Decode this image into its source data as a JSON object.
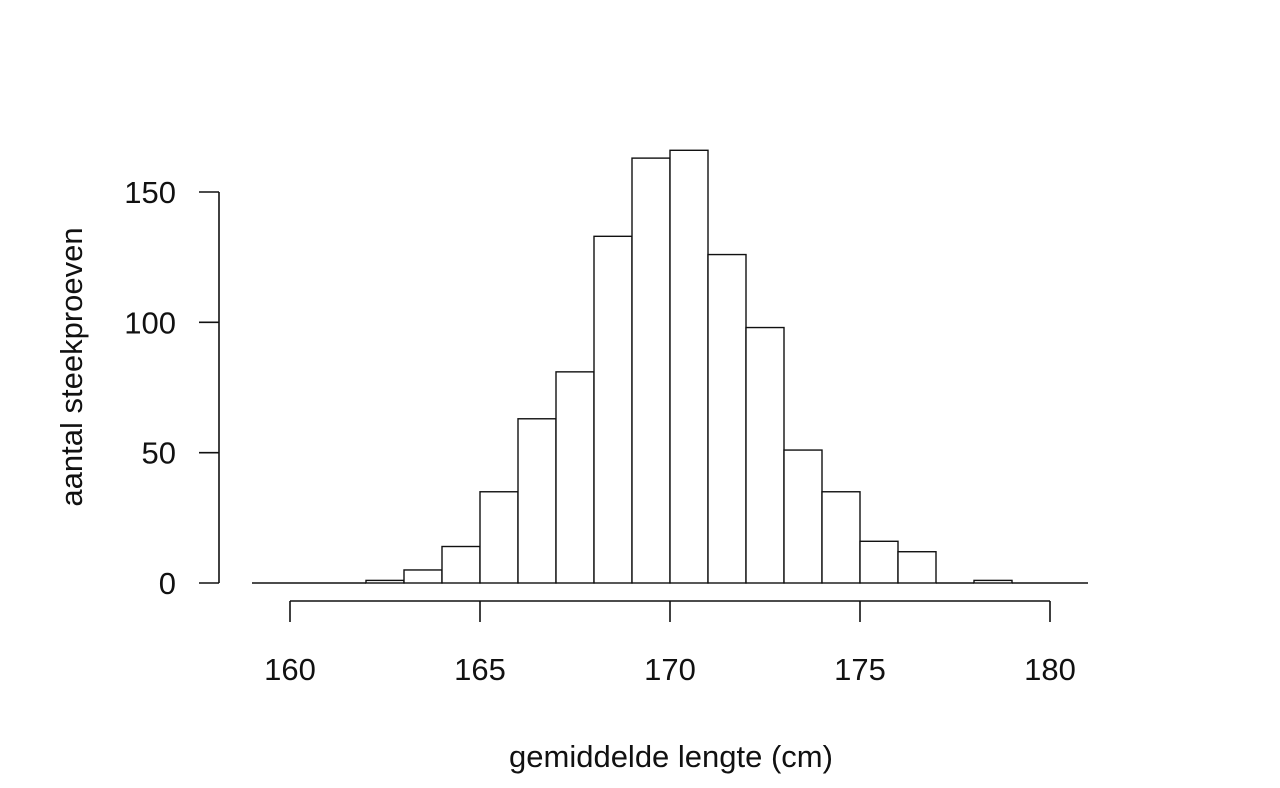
{
  "chart_data": {
    "type": "bar",
    "subtype": "histogram",
    "title": "",
    "xlabel": "gemiddelde lengte (cm)",
    "ylabel": "aantal steekproeven",
    "xlim": [
      160,
      180
    ],
    "ylim": [
      0,
      150
    ],
    "x_ticks": [
      160,
      165,
      170,
      175,
      180
    ],
    "y_ticks": [
      0,
      50,
      100,
      150
    ],
    "grid": false,
    "bin_width": 1,
    "bins": [
      {
        "start": 159,
        "end": 160,
        "count": 0
      },
      {
        "start": 160,
        "end": 161,
        "count": 0
      },
      {
        "start": 161,
        "end": 162,
        "count": 0
      },
      {
        "start": 162,
        "end": 163,
        "count": 1
      },
      {
        "start": 163,
        "end": 164,
        "count": 5
      },
      {
        "start": 164,
        "end": 165,
        "count": 14
      },
      {
        "start": 165,
        "end": 166,
        "count": 35
      },
      {
        "start": 166,
        "end": 167,
        "count": 63
      },
      {
        "start": 167,
        "end": 168,
        "count": 81
      },
      {
        "start": 168,
        "end": 169,
        "count": 133
      },
      {
        "start": 169,
        "end": 170,
        "count": 163
      },
      {
        "start": 170,
        "end": 171,
        "count": 166
      },
      {
        "start": 171,
        "end": 172,
        "count": 126
      },
      {
        "start": 172,
        "end": 173,
        "count": 98
      },
      {
        "start": 173,
        "end": 174,
        "count": 51
      },
      {
        "start": 174,
        "end": 175,
        "count": 35
      },
      {
        "start": 175,
        "end": 176,
        "count": 16
      },
      {
        "start": 176,
        "end": 177,
        "count": 12
      },
      {
        "start": 177,
        "end": 178,
        "count": 0
      },
      {
        "start": 178,
        "end": 179,
        "count": 1
      },
      {
        "start": 179,
        "end": 180,
        "count": 0
      },
      {
        "start": 180,
        "end": 181,
        "count": 0
      }
    ]
  }
}
